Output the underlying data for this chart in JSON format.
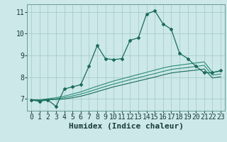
{
  "bg_color": "#cce8e8",
  "grid_color": "#aacccc",
  "line_color_dark": "#1a6b5a",
  "line_color_mid": "#2a8a7a",
  "xlabel": "Humidex (Indice chaleur)",
  "xlabel_fontsize": 8,
  "tick_fontsize": 7,
  "xlim": [
    -0.5,
    23.5
  ],
  "ylim": [
    6.45,
    11.35
  ],
  "yticks": [
    7,
    8,
    9,
    10,
    11
  ],
  "xticks": [
    0,
    1,
    2,
    3,
    4,
    5,
    6,
    7,
    8,
    9,
    10,
    11,
    12,
    13,
    14,
    15,
    16,
    17,
    18,
    19,
    20,
    21,
    22,
    23
  ],
  "line1_x": [
    0,
    1,
    2,
    3,
    4,
    5,
    6,
    7,
    8,
    9,
    10,
    11,
    12,
    13,
    14,
    15,
    16,
    17,
    18,
    19,
    20,
    21,
    22,
    23
  ],
  "line1_y": [
    6.95,
    6.88,
    6.95,
    6.65,
    7.45,
    7.55,
    7.65,
    8.5,
    9.45,
    8.85,
    8.8,
    8.85,
    9.7,
    9.8,
    10.9,
    11.05,
    10.45,
    10.2,
    9.1,
    8.85,
    8.5,
    8.2,
    8.2,
    8.3
  ],
  "line2_x": [
    0,
    1,
    2,
    3,
    4,
    5,
    6,
    7,
    8,
    9,
    10,
    11,
    12,
    13,
    14,
    15,
    16,
    17,
    18,
    19,
    20,
    21,
    22,
    23
  ],
  "line2_y": [
    6.95,
    6.95,
    7.0,
    7.05,
    7.12,
    7.22,
    7.32,
    7.45,
    7.58,
    7.7,
    7.82,
    7.92,
    8.02,
    8.12,
    8.22,
    8.32,
    8.42,
    8.5,
    8.55,
    8.6,
    8.65,
    8.7,
    8.22,
    8.27
  ],
  "line3_x": [
    0,
    1,
    2,
    3,
    4,
    5,
    6,
    7,
    8,
    9,
    10,
    11,
    12,
    13,
    14,
    15,
    16,
    17,
    18,
    19,
    20,
    21,
    22,
    23
  ],
  "line3_y": [
    6.95,
    6.94,
    6.98,
    7.0,
    7.05,
    7.13,
    7.22,
    7.33,
    7.45,
    7.57,
    7.68,
    7.78,
    7.88,
    7.97,
    8.07,
    8.16,
    8.26,
    8.35,
    8.4,
    8.44,
    8.49,
    8.54,
    8.09,
    8.14
  ],
  "line4_x": [
    0,
    1,
    2,
    3,
    4,
    5,
    6,
    7,
    8,
    9,
    10,
    11,
    12,
    13,
    14,
    15,
    16,
    17,
    18,
    19,
    20,
    21,
    22,
    23
  ],
  "line4_y": [
    6.95,
    6.93,
    6.96,
    6.97,
    6.99,
    7.05,
    7.12,
    7.22,
    7.33,
    7.44,
    7.55,
    7.64,
    7.73,
    7.82,
    7.91,
    8.0,
    8.1,
    8.19,
    8.24,
    8.28,
    8.32,
    8.37,
    7.96,
    8.01
  ]
}
